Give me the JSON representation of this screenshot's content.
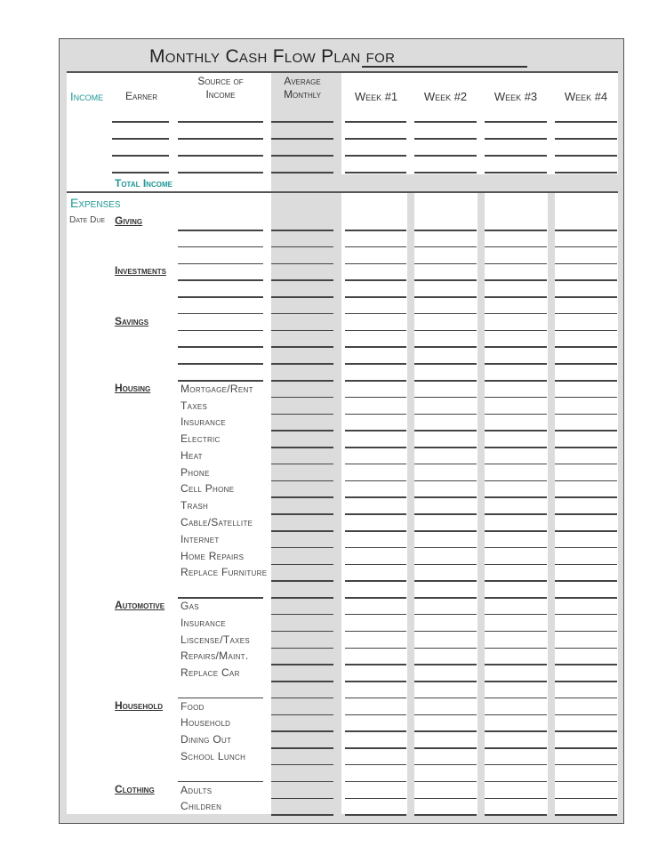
{
  "title": "Monthly Cash Flow Plan for",
  "income": {
    "section_label": "Income",
    "columns": {
      "earner": "Earner",
      "source": "Source of Income",
      "average": "Average Monthly",
      "weeks": [
        "Week #1",
        "Week #2",
        "Week #3",
        "Week #4"
      ]
    },
    "blank_rows": 4,
    "total_label": "Total Income"
  },
  "expenses": {
    "section_label": "Expenses",
    "date_due_label": "Date Due",
    "rows": [
      {
        "category": "Giving",
        "item": ""
      },
      {
        "category": "",
        "item": ""
      },
      {
        "category": "",
        "item": ""
      },
      {
        "category": "Investments",
        "item": ""
      },
      {
        "category": "",
        "item": ""
      },
      {
        "category": "",
        "item": ""
      },
      {
        "category": "Savings",
        "item": ""
      },
      {
        "category": "",
        "item": ""
      },
      {
        "category": "",
        "item": ""
      },
      {
        "category": "",
        "item": ""
      },
      {
        "category": "Housing",
        "item": "Mortgage/Rent"
      },
      {
        "category": "",
        "item": "Taxes"
      },
      {
        "category": "",
        "item": "Insurance"
      },
      {
        "category": "",
        "item": "Electric"
      },
      {
        "category": "",
        "item": "Heat"
      },
      {
        "category": "",
        "item": "Phone"
      },
      {
        "category": "",
        "item": "Cell Phone"
      },
      {
        "category": "",
        "item": "Trash"
      },
      {
        "category": "",
        "item": "Cable/Satellite"
      },
      {
        "category": "",
        "item": "Internet"
      },
      {
        "category": "",
        "item": "Home Repairs"
      },
      {
        "category": "",
        "item": "Replace Furniture"
      },
      {
        "category": "",
        "item": ""
      },
      {
        "category": "Automotive",
        "item": "Gas"
      },
      {
        "category": "",
        "item": "Insurance"
      },
      {
        "category": "",
        "item": "Liscense/Taxes"
      },
      {
        "category": "",
        "item": "Repairs/Maint."
      },
      {
        "category": "",
        "item": "Replace Car"
      },
      {
        "category": "",
        "item": ""
      },
      {
        "category": "Household",
        "item": "Food"
      },
      {
        "category": "",
        "item": "Household"
      },
      {
        "category": "",
        "item": "Dining Out"
      },
      {
        "category": "",
        "item": "School Lunch"
      },
      {
        "category": "",
        "item": ""
      },
      {
        "category": "Clothing",
        "item": "Adults"
      },
      {
        "category": "",
        "item": "Children"
      }
    ]
  },
  "colors": {
    "accent": "#1f9895",
    "shade": "#dcdcdc"
  }
}
